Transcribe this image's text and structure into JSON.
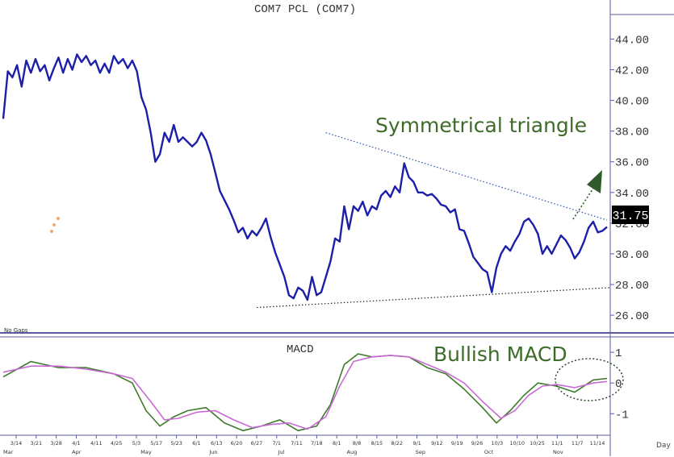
{
  "chart_data": [
    {
      "type": "line",
      "title": "COM7 PCL (COM7)",
      "ylim": [
        24.9,
        45.6
      ],
      "y_ticks": [
        "44.00",
        "42.00",
        "40.00",
        "38.00",
        "36.00",
        "34.00",
        "32.00",
        "30.00",
        "28.00",
        "26.00"
      ],
      "y_tick_values": [
        44,
        42,
        40,
        38,
        36,
        34,
        32,
        30,
        28,
        26
      ],
      "last_price_label": "31.75",
      "last_price": 31.75,
      "note_left": "No Gaps",
      "colors": {
        "price": "#1c1fa8",
        "trendline_upper": "#2a4fb0",
        "trendline_lower": "#222222",
        "annotation_text": "#3d6b2a",
        "arrow": "#2f5a2a",
        "axis": "#5b5b9c"
      },
      "price": [
        [
          0,
          38.8
        ],
        [
          1,
          41.9
        ],
        [
          2,
          41.5
        ],
        [
          3,
          42.3
        ],
        [
          4,
          40.9
        ],
        [
          5,
          42.6
        ],
        [
          6,
          41.8
        ],
        [
          7,
          42.7
        ],
        [
          8,
          41.9
        ],
        [
          9,
          42.3
        ],
        [
          10,
          41.3
        ],
        [
          11,
          42.1
        ],
        [
          12,
          42.8
        ],
        [
          13,
          41.8
        ],
        [
          14,
          42.7
        ],
        [
          15,
          42.0
        ],
        [
          16,
          43.0
        ],
        [
          17,
          42.5
        ],
        [
          18,
          42.9
        ],
        [
          19,
          42.3
        ],
        [
          20,
          42.6
        ],
        [
          21,
          41.8
        ],
        [
          22,
          42.4
        ],
        [
          23,
          41.8
        ],
        [
          24,
          42.9
        ],
        [
          25,
          42.4
        ],
        [
          26,
          42.7
        ],
        [
          27,
          42.1
        ],
        [
          28,
          42.6
        ],
        [
          29,
          41.9
        ],
        [
          30,
          40.2
        ],
        [
          31,
          39.4
        ],
        [
          32,
          37.9
        ],
        [
          33,
          36.0
        ],
        [
          34,
          36.5
        ],
        [
          35,
          37.9
        ],
        [
          36,
          37.3
        ],
        [
          37,
          38.4
        ],
        [
          38,
          37.3
        ],
        [
          39,
          37.6
        ],
        [
          40,
          37.3
        ],
        [
          41,
          37.0
        ],
        [
          42,
          37.3
        ],
        [
          43,
          37.9
        ],
        [
          44,
          37.4
        ],
        [
          45,
          36.5
        ],
        [
          46,
          35.3
        ],
        [
          47,
          34.1
        ],
        [
          48,
          33.5
        ],
        [
          49,
          32.9
        ],
        [
          50,
          32.2
        ],
        [
          51,
          31.4
        ],
        [
          52,
          31.7
        ],
        [
          53,
          31.0
        ],
        [
          54,
          31.5
        ],
        [
          55,
          31.2
        ],
        [
          56,
          31.7
        ],
        [
          57,
          32.3
        ],
        [
          58,
          31.1
        ],
        [
          59,
          30.1
        ],
        [
          60,
          29.3
        ],
        [
          61,
          28.5
        ],
        [
          62,
          27.3
        ],
        [
          63,
          27.1
        ],
        [
          64,
          27.8
        ],
        [
          65,
          27.6
        ],
        [
          66,
          27.0
        ],
        [
          67,
          28.5
        ],
        [
          68,
          27.3
        ],
        [
          69,
          27.5
        ],
        [
          70,
          28.5
        ],
        [
          71,
          29.5
        ],
        [
          72,
          31.0
        ],
        [
          73,
          30.8
        ],
        [
          74,
          33.1
        ],
        [
          75,
          31.6
        ],
        [
          76,
          33.1
        ],
        [
          77,
          32.8
        ],
        [
          78,
          33.4
        ],
        [
          79,
          32.5
        ],
        [
          80,
          33.1
        ],
        [
          81,
          32.9
        ],
        [
          82,
          33.8
        ],
        [
          83,
          34.1
        ],
        [
          84,
          33.7
        ],
        [
          85,
          34.4
        ],
        [
          86,
          34.0
        ],
        [
          87,
          35.9
        ],
        [
          88,
          35.0
        ],
        [
          89,
          34.7
        ],
        [
          90,
          34.0
        ],
        [
          91,
          34.0
        ],
        [
          92,
          33.8
        ],
        [
          93,
          33.9
        ],
        [
          94,
          33.6
        ],
        [
          95,
          33.2
        ],
        [
          96,
          33.1
        ],
        [
          97,
          32.7
        ],
        [
          98,
          32.9
        ],
        [
          99,
          31.6
        ],
        [
          100,
          31.5
        ],
        [
          101,
          30.7
        ],
        [
          102,
          29.8
        ],
        [
          103,
          29.4
        ],
        [
          104,
          29.0
        ],
        [
          105,
          28.8
        ],
        [
          106,
          27.5
        ],
        [
          107,
          29.1
        ],
        [
          108,
          30.0
        ],
        [
          109,
          30.5
        ],
        [
          110,
          30.2
        ],
        [
          111,
          30.8
        ],
        [
          112,
          31.3
        ],
        [
          113,
          32.1
        ],
        [
          114,
          32.3
        ],
        [
          115,
          31.9
        ],
        [
          116,
          31.3
        ],
        [
          117,
          30.0
        ],
        [
          118,
          30.5
        ],
        [
          119,
          30.0
        ],
        [
          120,
          30.6
        ],
        [
          121,
          31.2
        ],
        [
          122,
          30.9
        ],
        [
          123,
          30.4
        ],
        [
          124,
          29.7
        ],
        [
          125,
          30.1
        ],
        [
          126,
          30.8
        ],
        [
          127,
          31.7
        ],
        [
          128,
          32.1
        ],
        [
          129,
          31.4
        ],
        [
          130,
          31.5
        ],
        [
          131,
          31.75
        ]
      ],
      "upper_trendline": [
        [
          70,
          37.9
        ],
        [
          131,
          32.2
        ]
      ],
      "lower_trendline": [
        [
          55,
          26.5
        ],
        [
          131,
          27.8
        ]
      ],
      "annotations": [
        "Symmetrical triangle"
      ]
    },
    {
      "type": "line",
      "title": "MACD",
      "ylim": [
        -1.7,
        1.5
      ],
      "y_ticks": [
        "1",
        "0",
        "-1"
      ],
      "y_tick_values": [
        1,
        0,
        -1
      ],
      "colors": {
        "macd": "#3d7a2a",
        "signal": "#c96ad6"
      },
      "series": [
        {
          "values": [
            [
              0,
              0.2
            ],
            [
              6,
              0.7
            ],
            [
              12,
              0.5
            ],
            [
              18,
              0.5
            ],
            [
              24,
              0.3
            ],
            [
              28,
              0.0
            ],
            [
              31,
              -0.9
            ],
            [
              34,
              -1.4
            ],
            [
              37,
              -1.1
            ],
            [
              40,
              -0.9
            ],
            [
              44,
              -0.8
            ],
            [
              48,
              -1.3
            ],
            [
              52,
              -1.55
            ],
            [
              56,
              -1.4
            ],
            [
              60,
              -1.2
            ],
            [
              64,
              -1.55
            ],
            [
              68,
              -1.4
            ],
            [
              71,
              -0.7
            ],
            [
              74,
              0.6
            ],
            [
              77,
              0.95
            ],
            [
              80,
              0.85
            ],
            [
              84,
              0.9
            ],
            [
              88,
              0.85
            ],
            [
              92,
              0.5
            ],
            [
              96,
              0.3
            ],
            [
              100,
              -0.2
            ],
            [
              104,
              -0.8
            ],
            [
              107,
              -1.3
            ],
            [
              110,
              -0.9
            ],
            [
              113,
              -0.4
            ],
            [
              116,
              0.0
            ],
            [
              120,
              -0.1
            ],
            [
              124,
              -0.3
            ],
            [
              128,
              0.1
            ],
            [
              131,
              0.15
            ]
          ]
        },
        {
          "values": [
            [
              0,
              0.35
            ],
            [
              6,
              0.55
            ],
            [
              12,
              0.55
            ],
            [
              18,
              0.45
            ],
            [
              24,
              0.3
            ],
            [
              28,
              0.15
            ],
            [
              32,
              -0.6
            ],
            [
              35,
              -1.2
            ],
            [
              38,
              -1.15
            ],
            [
              42,
              -0.95
            ],
            [
              46,
              -0.9
            ],
            [
              50,
              -1.2
            ],
            [
              54,
              -1.45
            ],
            [
              58,
              -1.35
            ],
            [
              62,
              -1.3
            ],
            [
              66,
              -1.5
            ],
            [
              70,
              -1.1
            ],
            [
              73,
              -0.1
            ],
            [
              76,
              0.7
            ],
            [
              80,
              0.85
            ],
            [
              84,
              0.9
            ],
            [
              88,
              0.85
            ],
            [
              92,
              0.6
            ],
            [
              96,
              0.35
            ],
            [
              100,
              0.0
            ],
            [
              104,
              -0.6
            ],
            [
              108,
              -1.15
            ],
            [
              111,
              -0.9
            ],
            [
              114,
              -0.4
            ],
            [
              117,
              -0.1
            ],
            [
              120,
              -0.05
            ],
            [
              124,
              -0.15
            ],
            [
              128,
              0.0
            ],
            [
              131,
              0.05
            ]
          ]
        }
      ],
      "annotations": [
        "Bullish MACD"
      ]
    }
  ],
  "x_axis": {
    "day_ticks": [
      "3/14",
      "3/21",
      "3/28",
      "4/1",
      "4/11",
      "4/25",
      "5/3",
      "5/17",
      "5/23",
      "6/1",
      "6/13",
      "6/20",
      "6/27",
      "7/1",
      "7/11",
      "7/18",
      "8/1",
      "8/8",
      "8/15",
      "8/22",
      "9/1",
      "9/12",
      "9/19",
      "9/26",
      "10/3",
      "10/10",
      "10/25",
      "11/1",
      "11/7",
      "11/14"
    ],
    "month_ticks": [
      "Mar",
      "Apr",
      "May",
      "Jun",
      "Jul",
      "Aug",
      "Sep",
      "Oct",
      "Nov"
    ],
    "period_label": "Day"
  }
}
